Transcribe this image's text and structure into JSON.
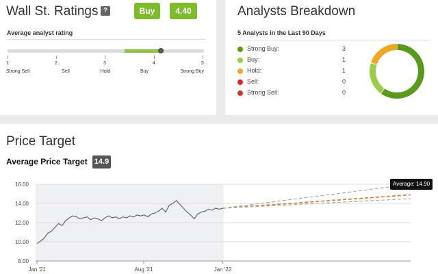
{
  "ratings": {
    "title": "Wall St. Ratings",
    "help": "?",
    "rating_label": "Buy",
    "score": "4.40",
    "avg_label": "Average analyst rating",
    "scale_value": 4.4,
    "scale": [
      {
        "num": "1",
        "word": "Strong Sell"
      },
      {
        "num": "2",
        "word": "Sell"
      },
      {
        "num": "3",
        "word": "Hold"
      },
      {
        "num": "4",
        "word": "Buy"
      },
      {
        "num": "5",
        "word": "Strong Buy"
      }
    ]
  },
  "breakdown": {
    "title": "Analysts Breakdown",
    "subtitle": "5 Analysts in the Last 90 Days",
    "items": [
      {
        "label": "Strong Buy:",
        "count": "3",
        "color": "#5a9a1b"
      },
      {
        "label": "Buy:",
        "count": "1",
        "color": "#9acd4a"
      },
      {
        "label": "Hold:",
        "count": "1",
        "color": "#f0a820"
      },
      {
        "label": "Sell:",
        "count": "0",
        "color": "#e8261c"
      },
      {
        "label": "Strong Sell:",
        "count": "0",
        "color": "#d0342c"
      }
    ]
  },
  "target": {
    "title": "Price Target",
    "avg_label": "Average Price Target",
    "avg_value": "14.9",
    "tooltip": "Average: 14.90"
  },
  "chart_data": {
    "type": "line",
    "y_ticks": [
      "16.00",
      "14.00",
      "12.00",
      "10.00",
      "8.00"
    ],
    "ylim": [
      8,
      16
    ],
    "x_ticks": [
      "Jan '21",
      "Aug '21",
      "Jan '22"
    ],
    "grid": true,
    "series": [
      {
        "x": [
          "2021-01-04",
          "2021-01-11",
          "2021-01-18",
          "2021-01-25",
          "2021-02-01",
          "2021-02-08",
          "2021-02-15",
          "2021-02-22",
          "2021-03-01",
          "2021-03-08",
          "2021-03-15",
          "2021-03-22",
          "2021-03-29",
          "2021-04-05",
          "2021-04-12",
          "2021-04-19",
          "2021-04-26",
          "2021-05-03",
          "2021-05-10",
          "2021-05-17",
          "2021-05-24",
          "2021-05-31",
          "2021-06-07",
          "2021-06-14",
          "2021-06-21",
          "2021-06-28",
          "2021-07-05",
          "2021-07-12",
          "2021-07-19",
          "2021-07-26",
          "2021-08-02",
          "2021-08-09",
          "2021-08-16",
          "2021-08-23",
          "2021-08-30",
          "2021-09-06",
          "2021-09-13",
          "2021-09-20",
          "2021-09-27",
          "2021-10-04",
          "2021-10-11",
          "2021-10-18",
          "2021-10-25",
          "2021-11-01",
          "2021-11-08",
          "2021-11-15",
          "2021-11-22",
          "2021-11-29",
          "2021-12-06",
          "2021-12-13",
          "2021-12-20",
          "2021-12-27",
          "2022-01-03"
        ],
        "values": [
          9.8,
          10.1,
          10.4,
          10.9,
          11.1,
          11.5,
          11.9,
          11.7,
          12.2,
          12.5,
          12.7,
          12.6,
          12.4,
          12.5,
          12.6,
          12.3,
          12.5,
          12.4,
          12.2,
          12.5,
          12.7,
          12.5,
          12.6,
          12.4,
          12.6,
          12.5,
          12.7,
          12.6,
          12.8,
          12.7,
          12.8,
          12.6,
          12.9,
          13.0,
          13.2,
          13.5,
          13.1,
          13.8,
          14.0,
          14.3,
          13.9,
          13.5,
          13.1,
          12.8,
          12.4,
          12.9,
          13.1,
          13.2,
          13.4,
          13.3,
          13.5,
          13.4,
          13.5
        ]
      }
    ],
    "projections": [
      {
        "kind": "high",
        "end_value": 16.0,
        "color": "#aaaaaa"
      },
      {
        "kind": "average",
        "end_value": 14.9,
        "color": "#e8731c"
      },
      {
        "kind": "low",
        "end_value": 14.5,
        "color": "#aaaaaa"
      }
    ]
  }
}
